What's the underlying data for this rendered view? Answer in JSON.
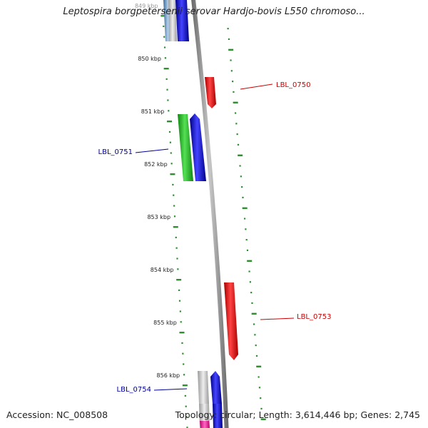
{
  "title": "Leptospira borgpetersenii serovar Hardjo-bovis L550 chromoso...",
  "accession": "Accession: NC_008508",
  "summary": "Topology: circular; Length: 3,614,446 bp; Genes: 2,745",
  "ticks": [
    {
      "label": "849 kbp"
    },
    {
      "label": "850 kbp"
    },
    {
      "label": "851 kbp"
    },
    {
      "label": "852 kbp"
    },
    {
      "label": "853 kbp"
    },
    {
      "label": "854 kbp"
    },
    {
      "label": "855 kbp"
    },
    {
      "label": "856 kbp"
    }
  ],
  "genes": [
    {
      "name": "LBL_0750",
      "strand": "reverse",
      "color": "#ff0000"
    },
    {
      "name": "LBL_0751",
      "strand": "forward",
      "color": "#0000ee"
    },
    {
      "name": "LBL_0753",
      "strand": "reverse",
      "color": "#ff0000"
    },
    {
      "name": "LBL_0754",
      "strand": "forward",
      "color": "#0000ee"
    }
  ],
  "colors": {
    "backbone": "#8a8a8a",
    "tick": "#2f8f2f",
    "forward_gene": "#0000ee",
    "reverse_gene": "#ff0000",
    "other_feature": "#33cc33",
    "pseudo_feature": "#ff1493",
    "label_forward": "#000099",
    "label_reverse": "#cc0000"
  }
}
